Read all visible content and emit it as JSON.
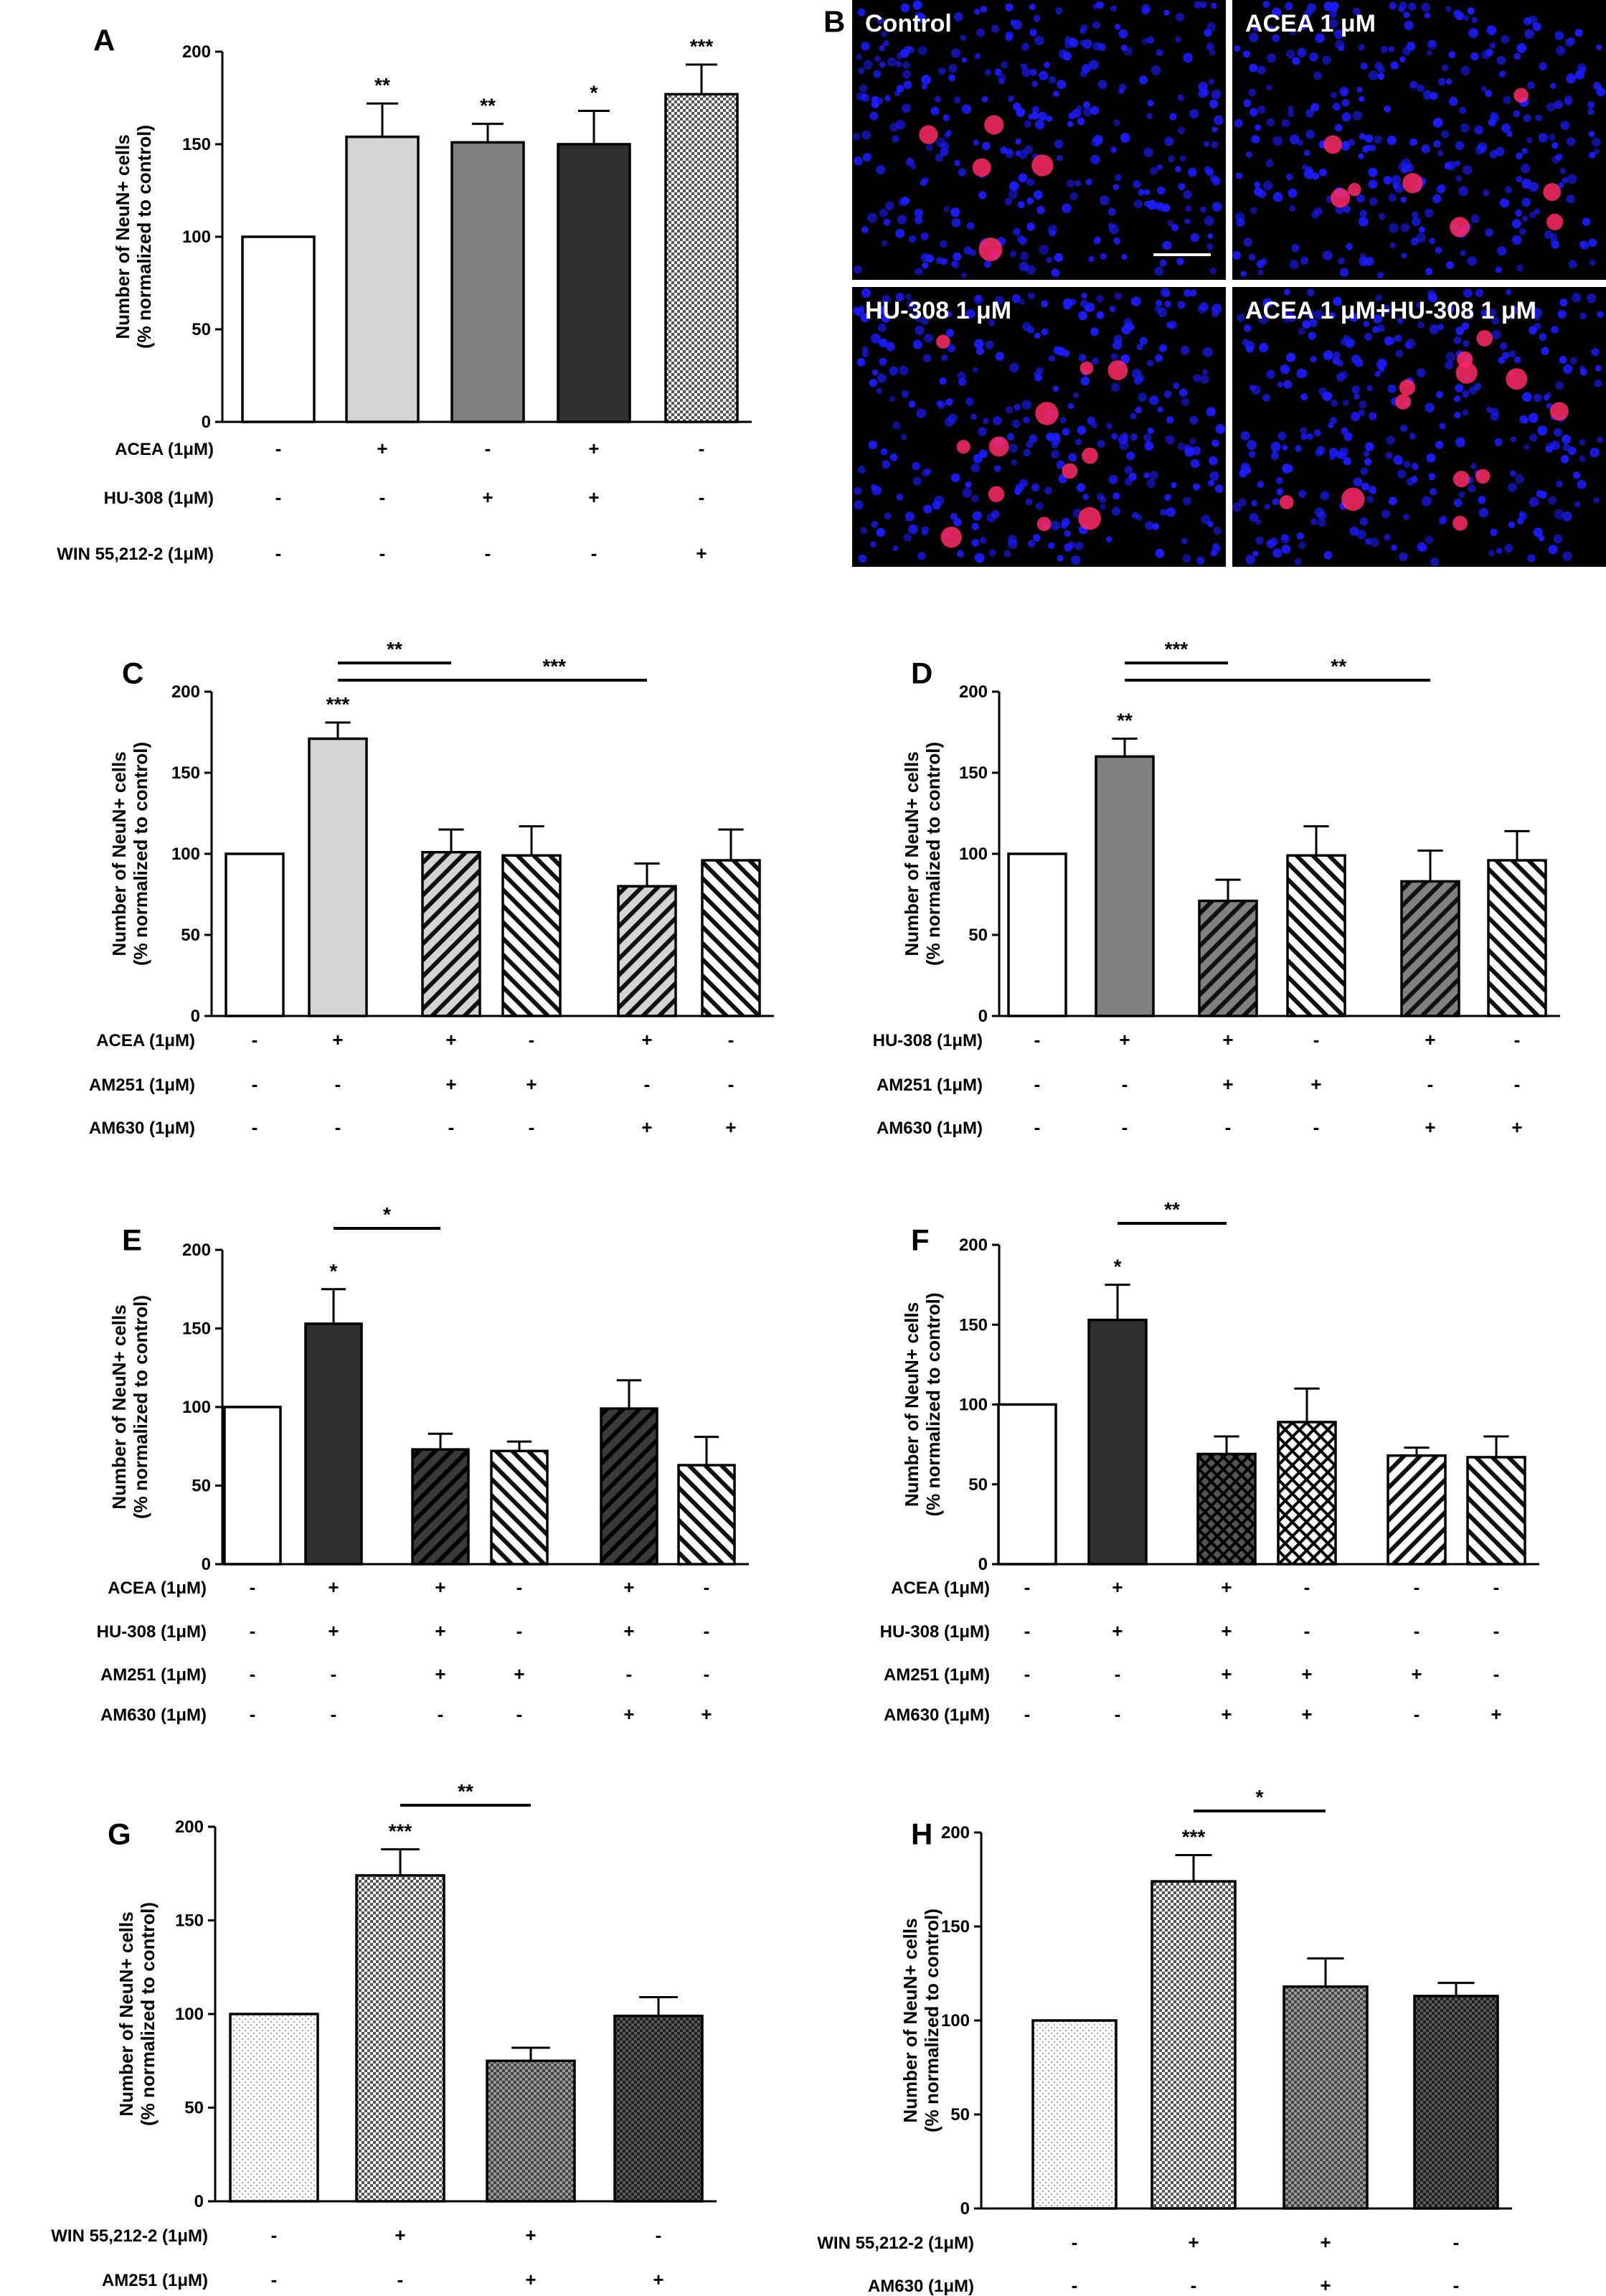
{
  "colors": {
    "white": "#ffffff",
    "lightgray": "#d4d4d4",
    "midgray": "#808080",
    "darkgray": "#2f2f2f",
    "nuclei": "#1c1cff",
    "neurons": "#ff2a66",
    "micro_bg": "#000000"
  },
  "chart_data": [
    {
      "panel": "A",
      "type": "bar",
      "ylabel": [
        "Number of NeuN+ cells",
        "(% normalized to control)"
      ],
      "ylim": [
        0,
        200
      ],
      "yticks": [
        "0",
        "50",
        "100",
        "150",
        "200"
      ],
      "values": [
        100,
        154,
        151,
        150,
        177
      ],
      "errors": [
        0,
        18,
        10,
        18,
        16
      ],
      "fills": [
        "white",
        "lightgray",
        "midgray",
        "darkgray",
        "checker"
      ],
      "significance": [
        "",
        "**",
        "**",
        "*",
        "***"
      ],
      "brackets": [],
      "conditions": [
        {
          "label": "ACEA (1μM)",
          "signs": [
            "-",
            "+",
            "-",
            "+",
            "-"
          ]
        },
        {
          "label": "HU-308 (1μM)",
          "signs": [
            "-",
            "-",
            "+",
            "+",
            "-"
          ]
        },
        {
          "label": "WIN 55,212-2 (1μM)",
          "signs": [
            "-",
            "-",
            "-",
            "-",
            "+"
          ]
        }
      ]
    },
    {
      "panel": "C",
      "type": "bar",
      "ylabel": [
        "Number of NeuN+ cells",
        "(% normalized to control)"
      ],
      "ylim": [
        0,
        200
      ],
      "yticks": [
        "0",
        "50",
        "100",
        "150",
        "200"
      ],
      "values": [
        100,
        171,
        101,
        99,
        80,
        96
      ],
      "errors": [
        0,
        10,
        14,
        18,
        14,
        19
      ],
      "fills": [
        "white",
        "lightgray",
        "hatch-light-a",
        "hatch-white-b",
        "hatch-light-a",
        "hatch-white-b"
      ],
      "significance": [
        "",
        "***",
        "",
        "",
        "",
        ""
      ],
      "brackets": [
        {
          "from": 1,
          "to": 2,
          "label": "**"
        },
        {
          "from": 1,
          "to": 4,
          "label": "***"
        }
      ],
      "conditions": [
        {
          "label": "ACEA (1μM)",
          "signs": [
            "-",
            "+",
            "+",
            "-",
            "+",
            "-"
          ]
        },
        {
          "label": "AM251 (1μM)",
          "signs": [
            "-",
            "-",
            "+",
            "+",
            "-",
            "-"
          ]
        },
        {
          "label": "AM630 (1μM)",
          "signs": [
            "-",
            "-",
            "-",
            "-",
            "+",
            "+"
          ]
        }
      ]
    },
    {
      "panel": "D",
      "type": "bar",
      "ylabel": [
        "Number of NeuN+ cells",
        "(% normalized to control)"
      ],
      "ylim": [
        0,
        200
      ],
      "yticks": [
        "0",
        "50",
        "100",
        "150",
        "200"
      ],
      "values": [
        100,
        160,
        71,
        99,
        83,
        96
      ],
      "errors": [
        0,
        11,
        13,
        18,
        19,
        18
      ],
      "fills": [
        "white",
        "midgray",
        "hatch-mid-a",
        "hatch-white-b",
        "hatch-mid-a",
        "hatch-white-b"
      ],
      "significance": [
        "",
        "**",
        "",
        "",
        "",
        ""
      ],
      "brackets": [
        {
          "from": 1,
          "to": 2,
          "label": "***"
        },
        {
          "from": 1,
          "to": 4,
          "label": "**"
        }
      ],
      "conditions": [
        {
          "label": "HU-308 (1μM)",
          "signs": [
            "-",
            "+",
            "+",
            "-",
            "+",
            "-"
          ]
        },
        {
          "label": "AM251 (1μM)",
          "signs": [
            "-",
            "-",
            "+",
            "+",
            "-",
            "-"
          ]
        },
        {
          "label": "AM630 (1μM)",
          "signs": [
            "-",
            "-",
            "-",
            "-",
            "+",
            "+"
          ]
        }
      ]
    },
    {
      "panel": "E",
      "type": "bar",
      "ylabel": [
        "Number of NeuN+ cells",
        "(% normalized to control)"
      ],
      "ylim": [
        0,
        200
      ],
      "yticks": [
        "0",
        "50",
        "100",
        "150",
        "200"
      ],
      "values": [
        100,
        153,
        73,
        72,
        99,
        63
      ],
      "errors": [
        0,
        22,
        10,
        6,
        18,
        18
      ],
      "fills": [
        "white",
        "darkgray",
        "hatch-dark-a",
        "hatch-white-b",
        "hatch-dark-a",
        "hatch-white-b"
      ],
      "significance": [
        "",
        "*",
        "",
        "",
        "",
        ""
      ],
      "brackets": [
        {
          "from": 1,
          "to": 2,
          "label": "*"
        }
      ],
      "conditions": [
        {
          "label": "ACEA (1μM)",
          "signs": [
            "-",
            "+",
            "+",
            "-",
            "+",
            "-"
          ]
        },
        {
          "label": "HU-308 (1μM)",
          "signs": [
            "-",
            "+",
            "+",
            "-",
            "+",
            "-"
          ]
        },
        {
          "label": "AM251 (1μM)",
          "signs": [
            "-",
            "-",
            "+",
            "+",
            "-",
            "-"
          ]
        },
        {
          "label": "AM630 (1μM)",
          "signs": [
            "-",
            "-",
            "-",
            "-",
            "+",
            "+"
          ]
        }
      ]
    },
    {
      "panel": "F",
      "type": "bar",
      "ylabel": [
        "Number of NeuN+ cells",
        "(% normalized to control)"
      ],
      "ylim": [
        0,
        200
      ],
      "yticks": [
        "0",
        "50",
        "100",
        "150",
        "200"
      ],
      "values": [
        100,
        153,
        69,
        89,
        68,
        67
      ],
      "errors": [
        0,
        22,
        11,
        21,
        5,
        13
      ],
      "fills": [
        "white",
        "darkgray",
        "crosshatch-dark",
        "crosshatch-white",
        "hatch-white-a",
        "hatch-white-b"
      ],
      "significance": [
        "",
        "*",
        "",
        "",
        "",
        ""
      ],
      "brackets": [
        {
          "from": 1,
          "to": 2,
          "label": "**"
        }
      ],
      "conditions": [
        {
          "label": "ACEA (1μM)",
          "signs": [
            "-",
            "+",
            "+",
            "-",
            "-",
            "-"
          ]
        },
        {
          "label": "HU-308 (1μM)",
          "signs": [
            "-",
            "+",
            "+",
            "-",
            "-",
            "-"
          ]
        },
        {
          "label": "AM251 (1μM)",
          "signs": [
            "-",
            "-",
            "+",
            "+",
            "+",
            "-"
          ]
        },
        {
          "label": "AM630 (1μM)",
          "signs": [
            "-",
            "-",
            "+",
            "+",
            "-",
            "+"
          ]
        }
      ]
    },
    {
      "panel": "G",
      "type": "bar",
      "ylabel": [
        "Number of NeuN+ cells",
        "(% normalized to control)"
      ],
      "ylim": [
        0,
        200
      ],
      "yticks": [
        "0",
        "50",
        "100",
        "150",
        "200"
      ],
      "values": [
        100,
        174,
        75,
        99
      ],
      "errors": [
        0,
        14,
        7,
        10
      ],
      "fills": [
        "stipple",
        "checker",
        "checker-mid",
        "checker-dark"
      ],
      "significance": [
        "",
        "***",
        "",
        ""
      ],
      "brackets": [
        {
          "from": 1,
          "to": 2,
          "label": "**"
        }
      ],
      "conditions": [
        {
          "label": "WIN 55,212-2 (1μM)",
          "signs": [
            "-",
            "+",
            "+",
            "-"
          ]
        },
        {
          "label": "AM251 (1μM)",
          "signs": [
            "-",
            "-",
            "+",
            "+"
          ]
        }
      ]
    },
    {
      "panel": "H",
      "type": "bar",
      "ylabel": [
        "Number of NeuN+ cells",
        "(% normalized to control)"
      ],
      "ylim": [
        0,
        200
      ],
      "yticks": [
        "0",
        "50",
        "100",
        "150",
        "200"
      ],
      "values": [
        100,
        174,
        118,
        113
      ],
      "errors": [
        0,
        14,
        15,
        7
      ],
      "fills": [
        "stipple",
        "checker",
        "checker-mid",
        "checker-dark"
      ],
      "significance": [
        "",
        "***",
        "",
        ""
      ],
      "brackets": [
        {
          "from": 1,
          "to": 2,
          "label": "*"
        }
      ],
      "conditions": [
        {
          "label": "WIN 55,212-2 (1μM)",
          "signs": [
            "-",
            "+",
            "+",
            "-"
          ]
        },
        {
          "label": "AM630 (1μM)",
          "signs": [
            "-",
            "-",
            "+",
            "-"
          ]
        }
      ]
    }
  ],
  "micrographs": {
    "panel": "B",
    "images": [
      {
        "label": "Control",
        "neuron_density": "low"
      },
      {
        "label": "ACEA 1 μM",
        "neuron_density": "medium"
      },
      {
        "label": "HU-308 1 μM",
        "neuron_density": "high"
      },
      {
        "label": "ACEA 1 μM+HU-308 1 μM",
        "neuron_density": "high"
      }
    ]
  }
}
